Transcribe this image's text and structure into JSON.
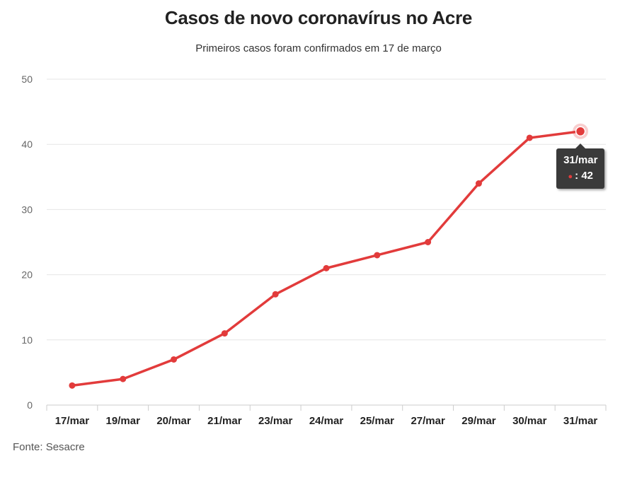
{
  "colors": {
    "line": "#e23b3b",
    "grid": "#e6e6e6",
    "tooltip_bg": "#3a3a3a"
  },
  "chart_data": {
    "type": "line",
    "title": "Casos de novo coronavírus no Acre",
    "subtitle": "Primeiros casos foram confirmados em 17 de março",
    "xlabel": "",
    "ylabel": "",
    "categories": [
      "17/mar",
      "19/mar",
      "20/mar",
      "21/mar",
      "23/mar",
      "24/mar",
      "25/mar",
      "27/mar",
      "29/mar",
      "30/mar",
      "31/mar"
    ],
    "series": [
      {
        "values": [
          3,
          4,
          7,
          11,
          17,
          21,
          23,
          25,
          34,
          41,
          42
        ]
      }
    ],
    "ylim": [
      0,
      50
    ],
    "yticks": [
      0,
      10,
      20,
      30,
      40,
      50
    ],
    "grid": true,
    "tooltip": {
      "category": "31/mar",
      "value_text": ": 42"
    },
    "source": "Fonte: Sesacre"
  }
}
